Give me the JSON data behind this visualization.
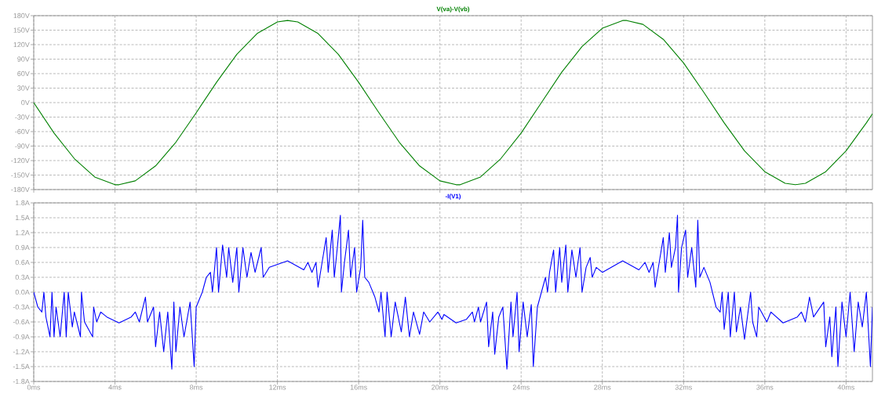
{
  "chart_data": [
    {
      "type": "line",
      "title": "V(va)-V(vb)",
      "color": "#008000",
      "grid": true,
      "marker": "none",
      "line_style": "solid",
      "tick_labels": "y",
      "x": [
        0,
        1,
        2,
        3,
        4,
        4.2,
        5,
        6,
        7,
        8,
        9,
        10,
        11,
        12,
        12.5,
        13,
        14,
        15,
        16,
        17,
        18,
        19,
        20,
        20.8,
        21,
        22,
        23,
        24,
        25,
        26,
        27,
        28,
        29,
        29.2,
        30,
        31,
        32,
        33,
        34,
        35,
        36,
        37,
        37.5,
        38,
        39,
        40,
        41,
        41.3
      ],
      "values": [
        0,
        -63,
        -116,
        -154,
        -170,
        -170,
        -162,
        -131,
        -82,
        -21,
        42,
        100,
        143,
        167,
        170,
        167,
        143,
        100,
        42,
        -21,
        -82,
        -131,
        -162,
        -170,
        -170,
        -154,
        -116,
        -63,
        0,
        63,
        116,
        154,
        170,
        170,
        162,
        131,
        82,
        21,
        -42,
        -100,
        -143,
        -167,
        -170,
        -167,
        -143,
        -100,
        -42,
        -23
      ],
      "xlim": [
        0,
        41.3
      ],
      "xticks": [
        {
          "value": 0,
          "label": null
        },
        {
          "value": 4,
          "label": null
        },
        {
          "value": 8,
          "label": null
        },
        {
          "value": 12,
          "label": null
        },
        {
          "value": 16,
          "label": null
        },
        {
          "value": 20,
          "label": null
        },
        {
          "value": 24,
          "label": null
        },
        {
          "value": 28,
          "label": null
        },
        {
          "value": 32,
          "label": null
        },
        {
          "value": 36,
          "label": null
        },
        {
          "value": 40,
          "label": null
        }
      ],
      "ylim": [
        -180,
        180
      ],
      "yticks": [
        {
          "value": -180,
          "label": "-180V"
        },
        {
          "value": -150,
          "label": "-150V"
        },
        {
          "value": -120,
          "label": "-120V"
        },
        {
          "value": -90,
          "label": "-90V"
        },
        {
          "value": -60,
          "label": "-60V"
        },
        {
          "value": -30,
          "label": "-30V"
        },
        {
          "value": 0,
          "label": "0V"
        },
        {
          "value": 30,
          "label": "30V"
        },
        {
          "value": 60,
          "label": "60V"
        },
        {
          "value": 90,
          "label": "90V"
        },
        {
          "value": 120,
          "label": "120V"
        },
        {
          "value": 150,
          "label": "150V"
        },
        {
          "value": 180,
          "label": "180V"
        }
      ]
    },
    {
      "type": "line",
      "title": "-I(V1)",
      "color": "#0000ff",
      "grid": true,
      "marker": "none",
      "line_style": "solid",
      "x": [
        0,
        0.2,
        0.4,
        0.5,
        0.6,
        0.8,
        0.9,
        1.0,
        1.1,
        1.3,
        1.5,
        1.6,
        1.7,
        1.9,
        2.0,
        2.3,
        2.35,
        2.5,
        2.9,
        2.95,
        3.1,
        3.3,
        3.6,
        4.2,
        4.8,
        5.0,
        5.2,
        5.5,
        5.6,
        5.9,
        6.0,
        6.2,
        6.4,
        6.6,
        6.8,
        6.9,
        7.0,
        7.2,
        7.4,
        7.7,
        7.9,
        8.0,
        8.3,
        8.5,
        8.7,
        8.8,
        9.0,
        9.1,
        9.3,
        9.5,
        9.6,
        9.8,
        10.0,
        10.1,
        10.3,
        10.5,
        10.7,
        10.9,
        11.2,
        11.3,
        11.6,
        12.5,
        13.3,
        13.5,
        13.7,
        13.9,
        14.0,
        14.2,
        14.4,
        14.5,
        14.7,
        14.8,
        14.95,
        15.1,
        15.15,
        15.3,
        15.5,
        15.6,
        15.8,
        15.9,
        16.1,
        16.2,
        16.3,
        16.5,
        16.8,
        17.0,
        17.1,
        17.3,
        17.4,
        17.6,
        17.8,
        18.1,
        18.3,
        18.5,
        18.7,
        19.0,
        19.2,
        19.5,
        19.9,
        20.1,
        20.2,
        20.8,
        21.3,
        21.6,
        21.7,
        21.9,
        22.0,
        22.3,
        22.4,
        22.6,
        22.7,
        22.9,
        23.1,
        23.3,
        23.5,
        23.6,
        23.8,
        23.9,
        24.1,
        24.3,
        24.5,
        24.6,
        24.8,
        25.0,
        25.2,
        25.3,
        25.4,
        25.6,
        25.7,
        25.9,
        26.0,
        26.2,
        26.3,
        26.5,
        26.7,
        26.9,
        27.0,
        27.2,
        27.4,
        27.5,
        27.7,
        28.0,
        29.0,
        29.8,
        30.1,
        30.3,
        30.5,
        30.6,
        30.8,
        31.0,
        31.1,
        31.3,
        31.4,
        31.6,
        31.7,
        31.75,
        31.9,
        32.1,
        32.2,
        32.4,
        32.6,
        32.7,
        32.8,
        33.0,
        33.3,
        33.6,
        33.8,
        33.9,
        34.0,
        34.2,
        34.3,
        34.5,
        34.6,
        34.8,
        35.0,
        35.3,
        35.4,
        35.6,
        35.7,
        36.1,
        36.3,
        36.9,
        37.6,
        37.8,
        38.0,
        38.2,
        38.4,
        38.9,
        39.0,
        39.2,
        39.3,
        39.5,
        39.6,
        39.8,
        40.0,
        40.2,
        40.4,
        40.6,
        40.8,
        41.0,
        41.2,
        41.3
      ],
      "values": [
        0,
        -0.3,
        -0.4,
        0,
        -0.5,
        -0.9,
        0,
        -0.9,
        -0.3,
        -0.9,
        0,
        -0.9,
        0,
        -0.7,
        -0.4,
        -0.9,
        0,
        -0.6,
        -0.9,
        -0.3,
        -0.6,
        -0.4,
        -0.5,
        -0.62,
        -0.5,
        -0.4,
        -0.6,
        -0.1,
        -0.6,
        -0.3,
        -1.1,
        -0.4,
        -1.2,
        -0.4,
        -1.55,
        -0.2,
        -1.2,
        -0.3,
        -0.9,
        -0.2,
        -1.5,
        -0.3,
        0,
        0.3,
        0.4,
        0,
        0.9,
        0,
        0.95,
        0.3,
        0.9,
        0.2,
        0.9,
        0,
        0.9,
        0.3,
        0.8,
        0.4,
        0.9,
        0.3,
        0.5,
        0.63,
        0.45,
        0.6,
        0.4,
        0.6,
        0.1,
        0.6,
        1.1,
        0.4,
        1.25,
        0.3,
        0.9,
        1.55,
        0,
        0.6,
        1.25,
        0.3,
        0.9,
        0,
        0.5,
        1.45,
        0.3,
        0.2,
        -0.1,
        -0.4,
        0,
        -0.9,
        0,
        -0.9,
        -0.2,
        -0.8,
        -0.1,
        -0.9,
        -0.4,
        -0.85,
        -0.4,
        -0.6,
        -0.4,
        -0.55,
        -0.45,
        -0.62,
        -0.55,
        -0.4,
        -0.6,
        -0.3,
        -0.6,
        -0.2,
        -1.1,
        -0.4,
        -1.25,
        -0.5,
        -0.3,
        -1.55,
        -0.2,
        -0.9,
        0,
        -1.2,
        -0.2,
        -0.9,
        -0.25,
        -1.5,
        -0.3,
        0,
        0.3,
        0,
        0.4,
        0.85,
        0,
        0.9,
        0.2,
        0.95,
        0,
        0.85,
        0.3,
        0.9,
        0,
        0.5,
        0.7,
        0.3,
        0.5,
        0.4,
        0.63,
        0.45,
        0.6,
        0.4,
        0.6,
        0.1,
        0.6,
        1.1,
        0.4,
        1.2,
        0.5,
        0.9,
        1.55,
        0,
        0.9,
        1.25,
        0.3,
        0.9,
        0.1,
        1.45,
        0.3,
        0.5,
        0.2,
        -0.3,
        -0.4,
        0,
        -0.75,
        0,
        -0.9,
        0,
        -0.8,
        -0.3,
        -0.95,
        0,
        -0.6,
        -0.9,
        -0.3,
        -0.6,
        -0.4,
        -0.62,
        -0.5,
        -0.4,
        -0.6,
        -0.1,
        -0.5,
        -0.2,
        -1.1,
        -0.5,
        -1.3,
        -0.3,
        -1.5,
        -0.2,
        -0.9,
        0,
        -1.2,
        -0.2,
        -0.7,
        0,
        -1.5,
        -0.3
      ],
      "xlim": [
        0,
        41.3
      ],
      "xticks": [
        {
          "value": 0,
          "label": "0ms"
        },
        {
          "value": 4,
          "label": "4ms"
        },
        {
          "value": 8,
          "label": "8ms"
        },
        {
          "value": 12,
          "label": "12ms"
        },
        {
          "value": 16,
          "label": "16ms"
        },
        {
          "value": 20,
          "label": "20ms"
        },
        {
          "value": 24,
          "label": "24ms"
        },
        {
          "value": 28,
          "label": "28ms"
        },
        {
          "value": 32,
          "label": "32ms"
        },
        {
          "value": 36,
          "label": "36ms"
        },
        {
          "value": 40,
          "label": "40ms"
        }
      ],
      "ylim": [
        -1.8,
        1.8
      ],
      "yticks": [
        {
          "value": -1.8,
          "label": "-1.8A"
        },
        {
          "value": -1.5,
          "label": "-1.5A"
        },
        {
          "value": -1.2,
          "label": "-1.2A"
        },
        {
          "value": -0.9,
          "label": "-0.9A"
        },
        {
          "value": -0.6,
          "label": "-0.6A"
        },
        {
          "value": -0.3,
          "label": "-0.3A"
        },
        {
          "value": 0,
          "label": "0.0A"
        },
        {
          "value": 0.3,
          "label": "0.3A"
        },
        {
          "value": 0.6,
          "label": "0.6A"
        },
        {
          "value": 0.9,
          "label": "0.9A"
        },
        {
          "value": 1.2,
          "label": "1.2A"
        },
        {
          "value": 1.5,
          "label": "1.5A"
        },
        {
          "value": 1.8,
          "label": "1.8A"
        }
      ]
    }
  ]
}
